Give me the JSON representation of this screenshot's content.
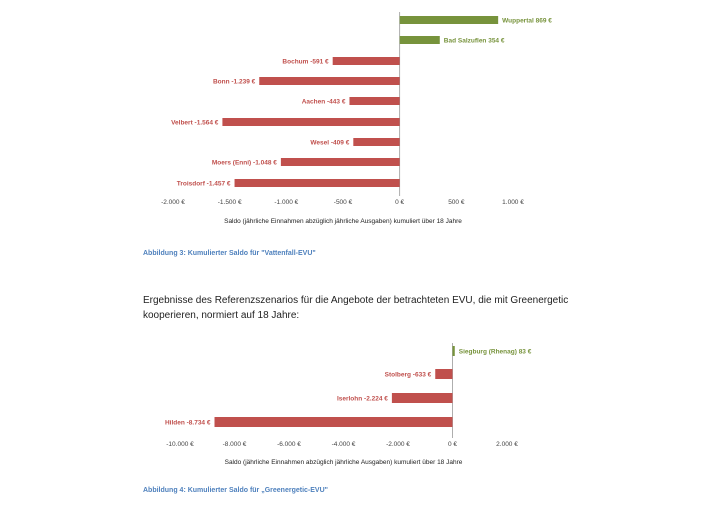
{
  "chart_data": [
    {
      "type": "bar",
      "orientation": "horizontal",
      "categories": [
        "Wuppertal",
        "Bad Salzuflen",
        "Bochum",
        "Bonn",
        "Aachen",
        "Velbert",
        "Wesel",
        "Moers (Enni)",
        "Troisdorf"
      ],
      "values": [
        869,
        354,
        -591,
        -1239,
        -443,
        -1564,
        -409,
        -1048,
        -1457
      ],
      "bar_labels": [
        "Wuppertal 869 €",
        "Bad Salzuflen  354 €",
        "Bochum -591 €",
        "Bonn -1.239 €",
        "Aachen -443 €",
        "Velbert -1.564 €",
        "Wesel -409 €",
        "Moers (Enni) -1.048 €",
        "Troisdorf -1.457 €"
      ],
      "xlim": [
        -2000,
        1000
      ],
      "ticks": [
        -2000,
        -1500,
        -1000,
        -500,
        0,
        500,
        1000
      ],
      "tick_labels": [
        "-2.000 €",
        "-1.500 €",
        "-1.000 €",
        "-500 €",
        "0 €",
        "500 €",
        "1.000 €"
      ],
      "xlabel": "Saldo (jährliche Einnahmen abzüglich jährliche Ausgaben) kumuliert über 18 Jahre",
      "colors": {
        "positive": "#77933c",
        "negative": "#c0504d"
      }
    },
    {
      "type": "bar",
      "orientation": "horizontal",
      "categories": [
        "Siegburg (Rhenag)",
        "Stolberg",
        "Iserlohn",
        "Hilden"
      ],
      "values": [
        83,
        -633,
        -2224,
        -8734
      ],
      "bar_labels": [
        "Siegburg (Rhenag)  83 €",
        "Stolberg -633 €",
        "Iserlohn -2.224 €",
        "Hilden -8.734 €"
      ],
      "xlim": [
        -10000,
        2000
      ],
      "ticks": [
        -10000,
        -8000,
        -6000,
        -4000,
        -2000,
        0,
        2000
      ],
      "tick_labels": [
        "-10.000 €",
        "-8.000 €",
        "-6.000 €",
        "-4.000 €",
        "-2.000 €",
        "0 €",
        "2.000 €"
      ],
      "xlabel": "Saldo (jährliche Einnahmen abzüglich jährliche Ausgaben) kumuliert über 18 Jahre",
      "colors": {
        "positive": "#77933c",
        "negative": "#c0504d"
      }
    }
  ],
  "captions": {
    "figure3": "Abbildung 3: Kumulierter Saldo für \"Vattenfall-EVU\"",
    "figure4": "Abbildung 4: Kumulierter Saldo für „Greenergetic-EVU\""
  },
  "heading": "Ergebnisse des Referenzszenarios für die Angebote der betrachteten EVU, die mit Greenergetic kooperieren, normiert auf 18 Jahre:"
}
